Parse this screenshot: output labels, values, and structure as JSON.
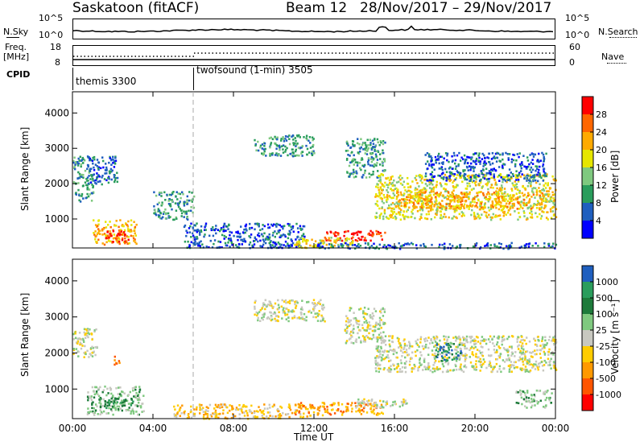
{
  "header": {
    "station": "Saskatoon (fitACF)",
    "beam": "Beam 12",
    "dates": "28/Nov/2017 – 29/Nov/2017"
  },
  "noise_panel": {
    "left_label": "N.Sky",
    "right_label": "N.Search",
    "left_ticks": [
      "10^5",
      "10^0"
    ],
    "right_ticks": [
      "10^5",
      "10^0"
    ]
  },
  "freq_panel": {
    "left_label_line1": "Freq.",
    "left_label_line2": "[MHz]",
    "right_label": "Nave",
    "left_ticks": [
      "18",
      "8"
    ],
    "right_ticks": [
      "60",
      "0"
    ]
  },
  "cpid_panel": {
    "label": "CPID",
    "modes": [
      {
        "name": "themis 3300",
        "start_hour": 0
      },
      {
        "name": "twofsound (1-min) 3505",
        "start_hour": 6
      }
    ]
  },
  "chart_data": [
    {
      "type": "heatmap",
      "name_hint": "power",
      "ylabel": "Slant Range [km]",
      "xlabel": "",
      "ylim": [
        180,
        4600
      ],
      "yticks": [
        1000,
        2000,
        3000,
        4000
      ],
      "x_ticks": [
        "00:00",
        "04:00",
        "08:00",
        "12:00",
        "16:00",
        "20:00",
        "00:00"
      ],
      "xlim_hours": [
        0,
        24
      ],
      "colorbar": {
        "label": "Power [dB]",
        "ticks": [
          "28",
          "24",
          "20",
          "16",
          "12",
          "8",
          "4"
        ],
        "colors": [
          "#ff0000",
          "#ff6600",
          "#ffaa00",
          "#e6e600",
          "#7fc97f",
          "#2a9d5c",
          "#1f5fbf",
          "#0000ff"
        ]
      },
      "blobs": [
        {
          "t0": 0.0,
          "t1": 1.0,
          "r0": 1500,
          "r1": 2800,
          "level": 2
        },
        {
          "t0": 0.7,
          "t1": 2.2,
          "r0": 2000,
          "r1": 2800,
          "level": 1
        },
        {
          "t0": 1.0,
          "t1": 3.2,
          "r0": 300,
          "r1": 1000,
          "level": 5
        },
        {
          "t0": 1.6,
          "t1": 2.8,
          "r0": 350,
          "r1": 700,
          "level": 7
        },
        {
          "t0": 4.0,
          "t1": 6.0,
          "r0": 1000,
          "r1": 1800,
          "level": 2
        },
        {
          "t0": 5.5,
          "t1": 11.5,
          "r0": 200,
          "r1": 900,
          "level": 1
        },
        {
          "t0": 9.0,
          "t1": 12.0,
          "r0": 2800,
          "r1": 3400,
          "level": 2
        },
        {
          "t0": 12.5,
          "t1": 15.5,
          "r0": 400,
          "r1": 700,
          "level": 7
        },
        {
          "t0": 11.0,
          "t1": 14.0,
          "r0": 200,
          "r1": 500,
          "level": 4
        },
        {
          "t0": 13.5,
          "t1": 15.5,
          "r0": 2200,
          "r1": 3300,
          "level": 2
        },
        {
          "t0": 15.0,
          "t1": 24.0,
          "r0": 1000,
          "r1": 2300,
          "level": 4
        },
        {
          "t0": 16.0,
          "t1": 23.5,
          "r0": 1300,
          "r1": 1800,
          "level": 5
        },
        {
          "t0": 17.5,
          "t1": 23.5,
          "r0": 2100,
          "r1": 2900,
          "level": 1
        },
        {
          "t0": 12.0,
          "t1": 24.0,
          "r0": 180,
          "r1": 350,
          "level": 1
        }
      ]
    },
    {
      "type": "heatmap",
      "name_hint": "velocity",
      "ylabel": "Slant Range [km]",
      "xlabel": "Time UT",
      "ylim": [
        180,
        4600
      ],
      "yticks": [
        1000,
        2000,
        3000,
        4000
      ],
      "x_ticks": [
        "00:00",
        "04:00",
        "08:00",
        "12:00",
        "16:00",
        "20:00",
        "00:00"
      ],
      "xlim_hours": [
        0,
        24
      ],
      "colorbar": {
        "label": "Velocity [m s⁻¹]",
        "ticks": [
          "1000",
          "500",
          "100",
          "25",
          "-25",
          "-100",
          "-500",
          "-1000"
        ],
        "colors": [
          "#1f5fbf",
          "#2a9d5c",
          "#1d7a3a",
          "#7fc97f",
          "#c8c8c0",
          "#ffcc00",
          "#ff9900",
          "#ff5500",
          "#ff0000"
        ]
      },
      "blobs": [
        {
          "t0": 0.0,
          "t1": 1.2,
          "r0": 1900,
          "r1": 2700,
          "level": 4
        },
        {
          "t0": 0.7,
          "t1": 3.5,
          "r0": 300,
          "r1": 1100,
          "level": 3
        },
        {
          "t0": 1.5,
          "t1": 3.0,
          "r0": 500,
          "r1": 800,
          "level": 2
        },
        {
          "t0": 2.0,
          "t1": 2.3,
          "r0": 1700,
          "r1": 2000,
          "level": 7
        },
        {
          "t0": 5.0,
          "t1": 12.0,
          "r0": 200,
          "r1": 600,
          "level": 5
        },
        {
          "t0": 9.0,
          "t1": 12.5,
          "r0": 2900,
          "r1": 3500,
          "level": 4
        },
        {
          "t0": 11.0,
          "t1": 15.5,
          "r0": 300,
          "r1": 650,
          "level": 6
        },
        {
          "t0": 13.5,
          "t1": 15.5,
          "r0": 2300,
          "r1": 3300,
          "level": 4
        },
        {
          "t0": 15.0,
          "t1": 24.0,
          "r0": 1500,
          "r1": 2500,
          "level": 4
        },
        {
          "t0": 18.0,
          "t1": 19.3,
          "r0": 1800,
          "r1": 2300,
          "level": 1
        },
        {
          "t0": 22.0,
          "t1": 23.8,
          "r0": 500,
          "r1": 1000,
          "level": 3
        },
        {
          "t0": 14.0,
          "t1": 17.0,
          "r0": 500,
          "r1": 750,
          "level": 4
        }
      ]
    }
  ]
}
